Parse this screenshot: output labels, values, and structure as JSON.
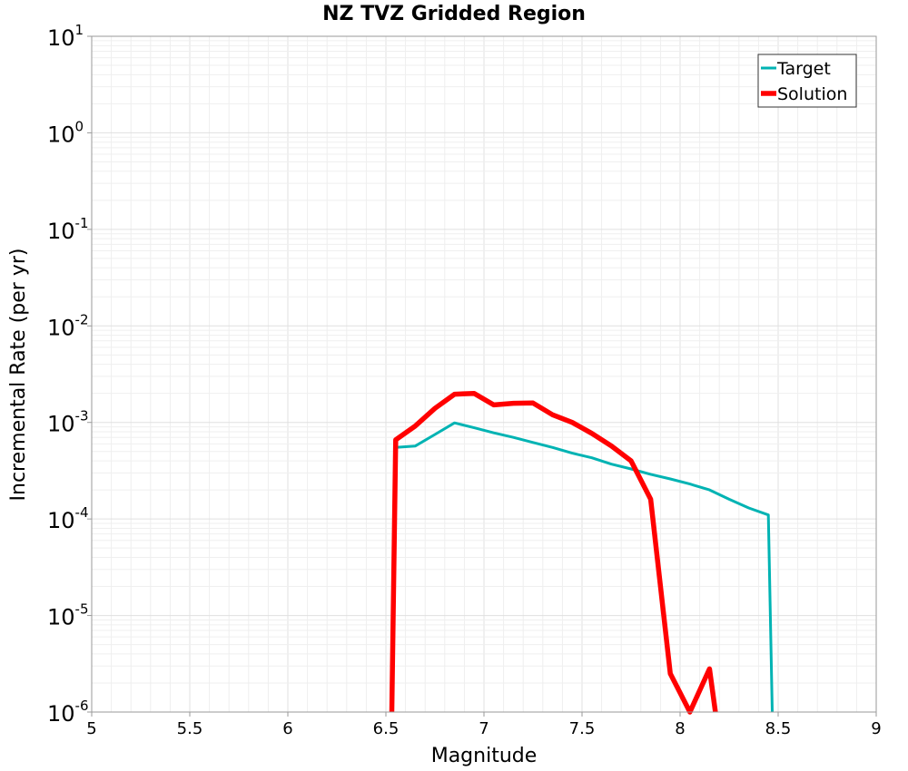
{
  "chart_data": {
    "type": "line",
    "title": "NZ TVZ Gridded Region",
    "xlabel": "Magnitude",
    "ylabel": "Incremental Rate (per yr)",
    "xlim": [
      5,
      9
    ],
    "ylim": [
      1e-06,
      10
    ],
    "yscale": "log",
    "grid": true,
    "legend_position": "top-right",
    "xticks": [
      "5",
      "5.5",
      "6",
      "6.5",
      "7",
      "7.5",
      "8",
      "8.5",
      "9"
    ],
    "yticks": [
      {
        "base": "10",
        "exp": "-6"
      },
      {
        "base": "10",
        "exp": "-5"
      },
      {
        "base": "10",
        "exp": "-4"
      },
      {
        "base": "10",
        "exp": "-3"
      },
      {
        "base": "10",
        "exp": "-2"
      },
      {
        "base": "10",
        "exp": "-1"
      },
      {
        "base": "10",
        "exp": "0"
      },
      {
        "base": "10",
        "exp": "1"
      }
    ],
    "series": [
      {
        "name": "Target",
        "color": "#00b3b3",
        "x": [
          6.55,
          6.65,
          6.75,
          6.85,
          6.95,
          7.05,
          7.15,
          7.25,
          7.35,
          7.45,
          7.55,
          7.65,
          7.75,
          7.85,
          7.95,
          8.05,
          8.15,
          8.25,
          8.35,
          8.45,
          8.47
        ],
        "y": [
          0.00055,
          0.00057,
          0.00075,
          0.00099,
          0.00088,
          0.00078,
          0.0007,
          0.00062,
          0.00055,
          0.00048,
          0.00043,
          0.00037,
          0.00033,
          0.00029,
          0.00026,
          0.00023,
          0.0002,
          0.00016,
          0.00013,
          0.00011,
          1e-06
        ]
      },
      {
        "name": "Solution",
        "color": "#ff0000",
        "x": [
          6.53,
          6.55,
          6.65,
          6.75,
          6.85,
          6.95,
          7.05,
          7.15,
          7.25,
          7.35,
          7.45,
          7.55,
          7.65,
          7.75,
          7.85,
          7.95,
          8.05,
          8.15,
          8.18
        ],
        "y": [
          1e-06,
          0.00066,
          0.00092,
          0.0014,
          0.00196,
          0.002,
          0.00152,
          0.00158,
          0.00159,
          0.0012,
          0.001,
          0.00077,
          0.00057,
          0.0004,
          0.00016,
          2.5e-06,
          1e-06,
          2.8e-06,
          1e-06
        ]
      }
    ]
  }
}
